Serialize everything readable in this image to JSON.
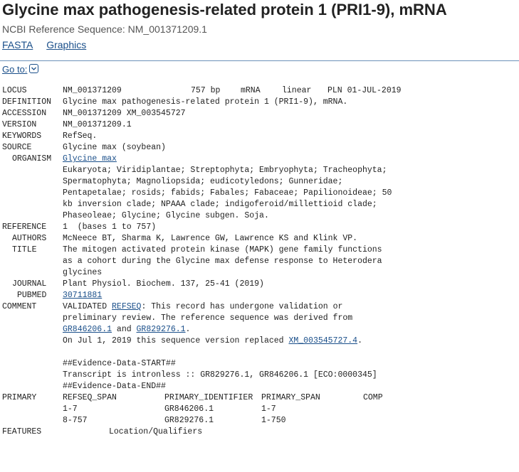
{
  "page": {
    "title": "Glycine max pathogenesis-related protein 1 (PRI1-9), mRNA",
    "subtitle": "NCBI Reference Sequence: NM_001371209.1",
    "links": [
      "FASTA",
      "Graphics"
    ],
    "goto_label": "Go to:"
  },
  "icons": {
    "goto_toggle": "chevron-down-icon"
  },
  "colors": {
    "link": "#1a4f8a",
    "rule": "#6b91b8"
  },
  "record": {
    "locus": {
      "key": "LOCUS",
      "name": "NM_001371209",
      "length": "757 bp",
      "moltype": "mRNA",
      "topology": "linear",
      "division_date": "PLN 01-JUL-2019"
    },
    "definition": {
      "key": "DEFINITION",
      "value": "Glycine max pathogenesis-related protein 1 (PRI1-9), mRNA."
    },
    "accession": {
      "key": "ACCESSION",
      "value": "NM_001371209 XM_003545727"
    },
    "version": {
      "key": "VERSION",
      "value": "NM_001371209.1"
    },
    "keywords": {
      "key": "KEYWORDS",
      "value": "RefSeq."
    },
    "source": {
      "key": "SOURCE",
      "value": "Glycine max (soybean)"
    },
    "organism": {
      "key": "ORGANISM",
      "name": "Glycine max",
      "lineage": [
        "Eukaryota; Viridiplantae; Streptophyta; Embryophyta; Tracheophyta;",
        "Spermatophyta; Magnoliopsida; eudicotyledons; Gunneridae;",
        "Pentapetalae; rosids; fabids; Fabales; Fabaceae; Papilionoideae; 50",
        "kb inversion clade; NPAAA clade; indigoferoid/millettioid clade;",
        "Phaseoleae; Glycine; Glycine subgen. Soja."
      ]
    },
    "reference": {
      "key": "REFERENCE",
      "value": "1  (bases 1 to 757)"
    },
    "authors": {
      "key": "AUTHORS",
      "value": "McNeece BT, Sharma K, Lawrence GW, Lawrence KS and Klink VP."
    },
    "title_field": {
      "key": "TITLE",
      "lines": [
        "The mitogen activated protein kinase (MAPK) gene family functions",
        "as a cohort during the Glycine max defense response to Heterodera",
        "glycines"
      ]
    },
    "journal": {
      "key": "JOURNAL",
      "value": "Plant Physiol. Biochem. 137, 25-41 (2019)"
    },
    "pubmed": {
      "key": "PUBMED",
      "value": "30711881"
    },
    "comment": {
      "key": "COMMENT",
      "line1_prefix": "VALIDATED ",
      "line1_link": "REFSEQ",
      "line1_suffix": ": This record has undergone validation or",
      "line2": "preliminary review. The reference sequence was derived from",
      "line3_link1": "GR846206.1",
      "line3_mid": " and ",
      "line3_link2": "GR829276.1",
      "line3_end": ".",
      "line4_prefix": "On Jul 1, 2019 this sequence version replaced ",
      "line4_link": "XM_003545727.4",
      "line4_end": ".",
      "evidence_start": "##Evidence-Data-START##",
      "evidence_line": "Transcript is intronless :: GR829276.1, GR846206.1 [ECO:0000345]",
      "evidence_end": "##Evidence-Data-END##"
    },
    "primary": {
      "key": "PRIMARY",
      "headers": [
        "REFSEQ_SPAN",
        "PRIMARY_IDENTIFIER",
        "PRIMARY_SPAN",
        "COMP"
      ],
      "rows": [
        [
          "1-7",
          "GR846206.1",
          "1-7",
          ""
        ],
        [
          "8-757",
          "GR829276.1",
          "1-750",
          ""
        ]
      ]
    },
    "features": {
      "key": "FEATURES",
      "value": "Location/Qualifiers"
    }
  }
}
